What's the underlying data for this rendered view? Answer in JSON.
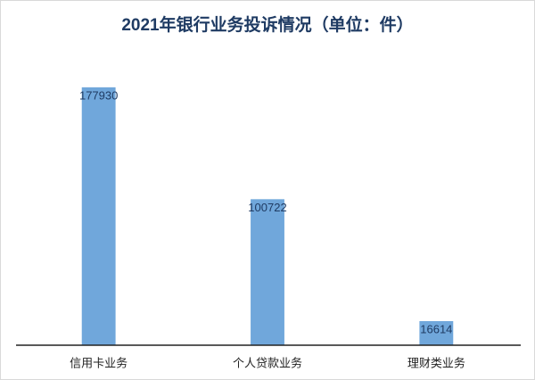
{
  "chart_data": {
    "type": "bar",
    "title": "2021年银行业务投诉情况（单位：件）",
    "categories": [
      "信用卡业务",
      "个人贷款业务",
      "理财类业务"
    ],
    "values": [
      177930,
      100722,
      16614
    ],
    "color": "#70a7db",
    "ylim": [
      0,
      200000
    ],
    "data_labels": true
  }
}
